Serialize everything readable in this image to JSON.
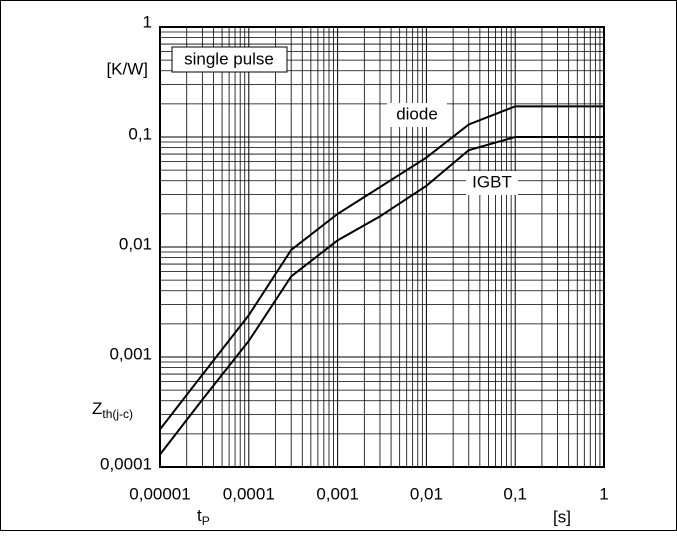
{
  "chart_data": {
    "type": "line",
    "y_unit": "[K/W]",
    "y_label": {
      "main": "Z",
      "sub": "th(j-c)"
    },
    "x_label": {
      "main": "t",
      "sub": "P"
    },
    "x_unit": "[s]",
    "annotation": "single pulse",
    "log_x": true,
    "log_y": true,
    "grid": "minor",
    "xlim": [
      1e-05,
      1
    ],
    "ylim": [
      0.0001,
      1
    ],
    "xticks": [
      {
        "value": 1e-05,
        "label": "0,00001"
      },
      {
        "value": 0.0001,
        "label": "0,0001"
      },
      {
        "value": 0.001,
        "label": "0,001"
      },
      {
        "value": 0.01,
        "label": "0,01"
      },
      {
        "value": 0.1,
        "label": "0,1"
      },
      1
    ],
    "yticks": [
      {
        "value": 0.0001,
        "label": "0,0001"
      },
      {
        "value": 0.001,
        "label": "0,001"
      },
      {
        "value": 0.01,
        "label": "0,01"
      },
      {
        "value": 0.1,
        "label": "0,1"
      },
      1
    ],
    "x": [
      1e-05,
      3e-05,
      0.0001,
      0.0003,
      0.001,
      0.003,
      0.01,
      0.03,
      0.1,
      0.2,
      1
    ],
    "series": [
      {
        "name": "diode",
        "color": "#000000",
        "values": [
          0.00022,
          0.00069,
          0.0024,
          0.0094,
          0.02,
          0.035,
          0.065,
          0.13,
          0.19,
          0.19,
          0.19
        ]
      },
      {
        "name": "IGBT",
        "color": "#000000",
        "values": [
          0.00013,
          0.00041,
          0.0014,
          0.0054,
          0.0115,
          0.019,
          0.036,
          0.076,
          0.1,
          0.1,
          0.1
        ]
      }
    ]
  }
}
